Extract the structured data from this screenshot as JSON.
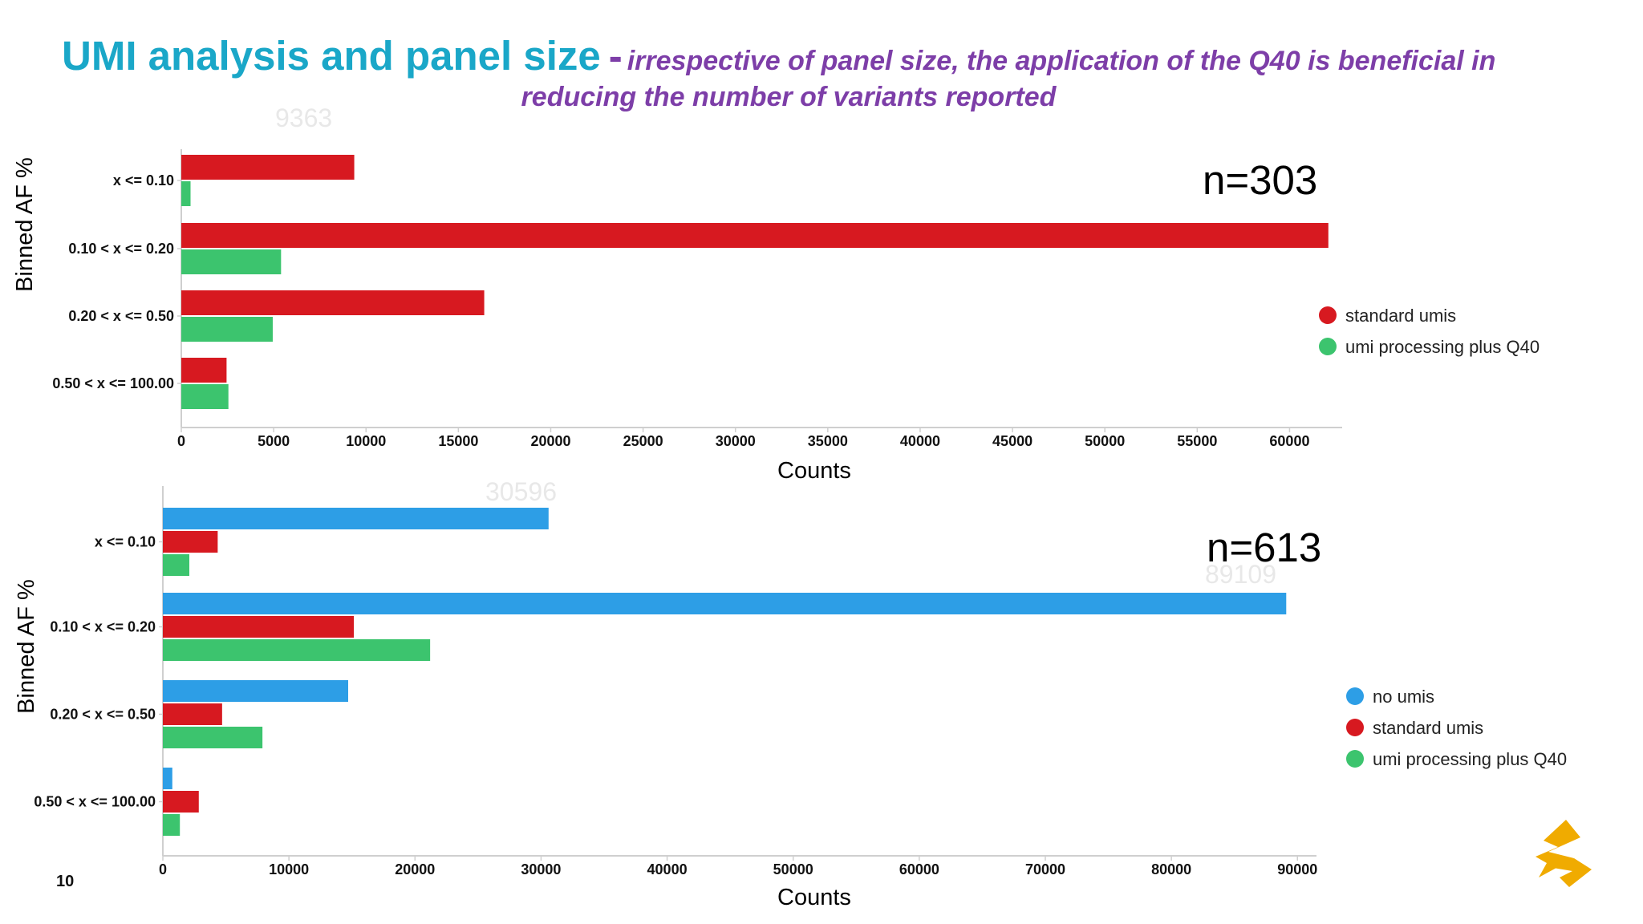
{
  "slide": {
    "title_main": "UMI analysis and panel size",
    "title_dash": "-",
    "title_sub_line1": "irrespective of panel size, the application of the Q40 is beneficial in",
    "title_sub_line2": "reducing the number of variants reported",
    "page_number": "10",
    "logo_icon": "company-logo-icon",
    "colors": {
      "title_main": "#1aa7c8",
      "title_sub": "#7d3ea8",
      "no_umis": "#2d9ee6",
      "standard_umis": "#d71920",
      "umi_processing_plus_q40": "#3cc46e"
    }
  },
  "chart_data": [
    {
      "type": "bar",
      "orientation": "horizontal",
      "annotation": "n=303",
      "ghost_label": "9363",
      "ylabel": "Binned AF %",
      "xlabel": "Counts",
      "xlim": [
        0,
        62500
      ],
      "xticks": [
        0,
        5000,
        10000,
        15000,
        20000,
        25000,
        30000,
        35000,
        40000,
        45000,
        50000,
        55000,
        60000
      ],
      "xtick_labels": [
        "0",
        "5000",
        "10000",
        "15000",
        "20000",
        "25000",
        "30000",
        "35000",
        "40000",
        "45000",
        "50000",
        "55000",
        "60000"
      ],
      "categories": [
        "x <= 0.10",
        "0.10 < x <= 0.20",
        "0.20 < x <= 0.50",
        "0.50 < x <= 100.00"
      ],
      "legend_position": "right",
      "series": [
        {
          "name": "standard umis",
          "color": "#d71920",
          "values": [
            9363,
            62100,
            16400,
            2450
          ]
        },
        {
          "name": "umi processing plus Q40",
          "color": "#3cc46e",
          "values": [
            500,
            5400,
            4950,
            2550
          ]
        }
      ]
    },
    {
      "type": "bar",
      "orientation": "horizontal",
      "annotation": "n=613",
      "ghost_labels": [
        "30596",
        "89109"
      ],
      "ylabel": "Binned AF %",
      "xlabel": "Counts",
      "xlim": [
        0,
        91000
      ],
      "xticks": [
        0,
        10000,
        20000,
        30000,
        40000,
        50000,
        60000,
        70000,
        80000,
        90000
      ],
      "xtick_labels": [
        "0",
        "10000",
        "20000",
        "30000",
        "40000",
        "50000",
        "60000",
        "70000",
        "80000",
        "90000"
      ],
      "categories": [
        "x <= 0.10",
        "0.10 < x <= 0.20",
        "0.20 < x <= 0.50",
        "0.50 < x <= 100.00"
      ],
      "legend_position": "right",
      "series": [
        {
          "name": "no umis",
          "color": "#2d9ee6",
          "values": [
            30596,
            89109,
            14700,
            750
          ]
        },
        {
          "name": "standard umis",
          "color": "#d71920",
          "values": [
            4350,
            15150,
            4700,
            2850
          ]
        },
        {
          "name": "umi processing plus Q40",
          "color": "#3cc46e",
          "values": [
            2100,
            21200,
            7900,
            1350
          ]
        }
      ]
    }
  ]
}
